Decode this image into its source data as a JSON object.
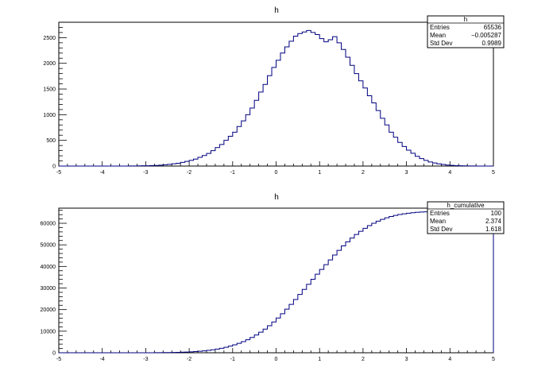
{
  "chart_data": [
    {
      "type": "histogram",
      "title": "h",
      "xlim": [
        -5,
        5
      ],
      "ylim": [
        0,
        2800
      ],
      "x_ticks": [
        -5,
        -4,
        -3,
        -2,
        -1,
        0,
        1,
        2,
        3,
        4,
        5
      ],
      "y_ticks": [
        0,
        500,
        1000,
        1500,
        2000,
        2500
      ],
      "color": "#000080",
      "bin_edges_range": [
        -5,
        5
      ],
      "bins": 100,
      "values": [
        0,
        0,
        0,
        0,
        0,
        0,
        0,
        0,
        0,
        0,
        0,
        0,
        0,
        0,
        0,
        0,
        1,
        2,
        3,
        5,
        6,
        9,
        12,
        18,
        25,
        32,
        44,
        55,
        72,
        90,
        110,
        135,
        170,
        205,
        245,
        300,
        360,
        420,
        500,
        580,
        660,
        770,
        880,
        1000,
        1130,
        1280,
        1440,
        1590,
        1760,
        1920,
        2060,
        2200,
        2320,
        2430,
        2530,
        2580,
        2610,
        2640,
        2600,
        2560,
        2480,
        2420,
        2460,
        2520,
        2400,
        2270,
        2120,
        1960,
        1800,
        1660,
        1520,
        1370,
        1230,
        1080,
        930,
        800,
        660,
        560,
        460,
        380,
        310,
        250,
        190,
        145,
        110,
        80,
        60,
        42,
        30,
        20,
        13,
        8,
        5,
        3,
        2,
        1,
        0,
        0,
        0,
        0
      ],
      "stats": {
        "name": "h",
        "rows": [
          {
            "label": "Entries",
            "value": "65536"
          },
          {
            "label": "Mean",
            "value": "−0.005287"
          },
          {
            "label": "Std Dev",
            "value": "0.9989"
          }
        ]
      }
    },
    {
      "type": "histogram",
      "title": "h",
      "xlim": [
        -5,
        5
      ],
      "ylim": [
        0,
        67000
      ],
      "x_ticks": [
        -5,
        -4,
        -3,
        -2,
        -1,
        0,
        1,
        2,
        3,
        4,
        5
      ],
      "y_ticks": [
        0,
        10000,
        20000,
        30000,
        40000,
        50000,
        60000
      ],
      "color": "#000080",
      "bins": 100,
      "cumulative_of": 0,
      "stats": {
        "name": "h_cumulative",
        "rows": [
          {
            "label": "Entries",
            "value": "100"
          },
          {
            "label": "Mean",
            "value": "2.374"
          },
          {
            "label": "Std Dev",
            "value": "1.618"
          }
        ]
      }
    }
  ]
}
